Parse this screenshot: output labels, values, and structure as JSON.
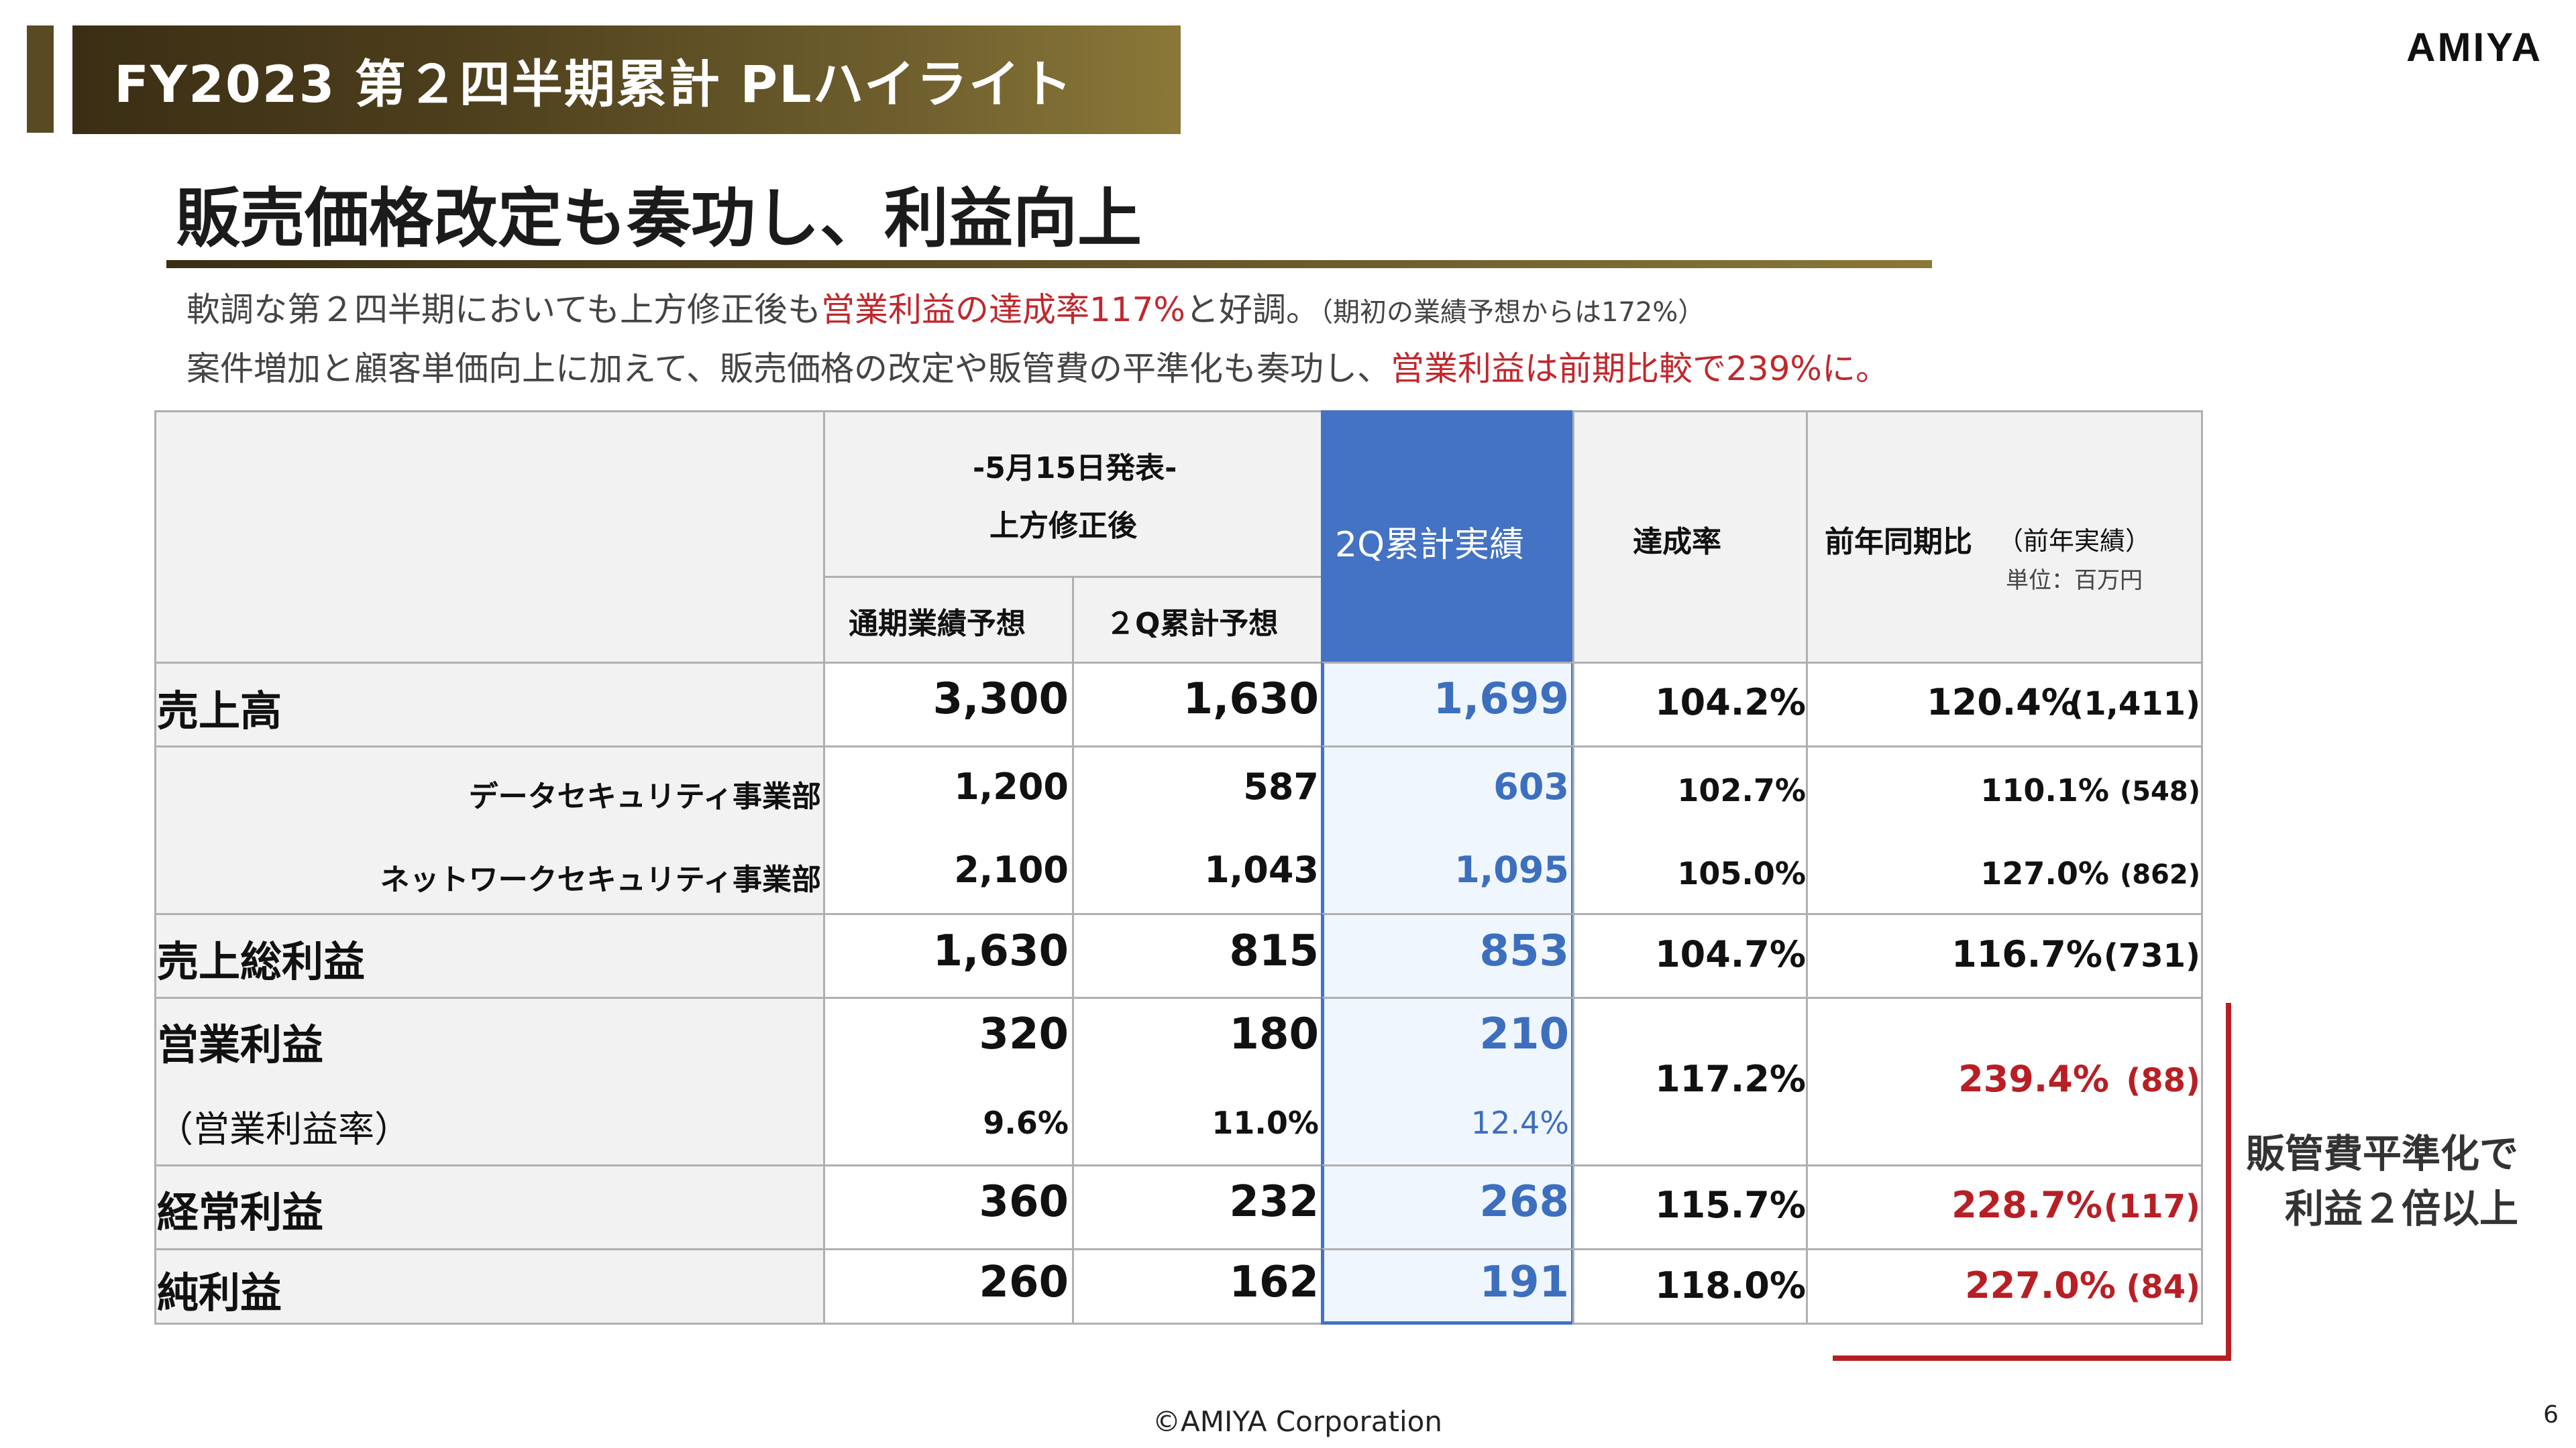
{
  "slide": {
    "title": "FY2023 第２四半期累計 PLハイライト",
    "logo": "AMIYA",
    "headline": "販売価格改定も奏功し、利益向上",
    "summary_line1_a": "軟調な第２四半期においても上方修正後も",
    "summary_line1_red": "営業利益の達成率117%",
    "summary_line1_b": "と好調。",
    "summary_line1_note": "（期初の業績予想からは172%）",
    "summary_line2_a": "案件増加と顧客単価向上に加えて、販売価格の改定や販管費の平準化も奏功し、",
    "summary_line2_red": "営業利益は前期比較で239%に。",
    "footer": "©AMIYA Corporation",
    "page_number": "6"
  },
  "table": {
    "header": {
      "announce_date": "-5月15日発表-",
      "revised": "上方修正後",
      "full_year_forecast": "通期業績予想",
      "q2_forecast": "２Q累計予想",
      "q2_actual": "2Q累計実績",
      "achievement": "達成率",
      "yoy": "前年同期比",
      "yoy_note": "（前年実績）",
      "unit": "単位：百万円"
    },
    "rows": [
      {
        "label": "売上高",
        "full_year": "3,300",
        "q2_forecast": "1,630",
        "q2_actual": "1,699",
        "achievement": "104.2%",
        "yoy": "120.4%",
        "prior": "(1,411)"
      },
      {
        "label": "データセキュリティ事業部",
        "full_year": "1,200",
        "q2_forecast": "587",
        "q2_actual": "603",
        "achievement": "102.7%",
        "yoy": "110.1%",
        "prior": "(548)"
      },
      {
        "label": "ネットワークセキュリティ事業部",
        "full_year": "2,100",
        "q2_forecast": "1,043",
        "q2_actual": "1,095",
        "achievement": "105.0%",
        "yoy": "127.0%",
        "prior": "(862)"
      },
      {
        "label": "売上総利益",
        "full_year": "1,630",
        "q2_forecast": "815",
        "q2_actual": "853",
        "achievement": "104.7%",
        "yoy": "116.7%",
        "prior": "(731)"
      },
      {
        "label": "営業利益",
        "full_year": "320",
        "q2_forecast": "180",
        "q2_actual": "210",
        "achievement": "117.2%",
        "yoy": "239.4%",
        "prior": "(88)"
      },
      {
        "label": "（営業利益率）",
        "full_year": "9.6%",
        "q2_forecast": "11.0%",
        "q2_actual": "12.4%"
      },
      {
        "label": "経常利益",
        "full_year": "360",
        "q2_forecast": "232",
        "q2_actual": "268",
        "achievement": "115.7%",
        "yoy": "228.7%",
        "prior": "(117)"
      },
      {
        "label": "純利益",
        "full_year": "260",
        "q2_forecast": "162",
        "q2_actual": "191",
        "achievement": "118.0%",
        "yoy": "227.0%",
        "prior": "(84)"
      }
    ]
  },
  "callout": {
    "line1": "販管費平準化で",
    "line2": "利益２倍以上"
  },
  "colors": {
    "banner_dark": "#3a2e14",
    "banner_light": "#8a7838",
    "highlight_blue": "#4472c4",
    "accent_red": "#b81f24"
  }
}
